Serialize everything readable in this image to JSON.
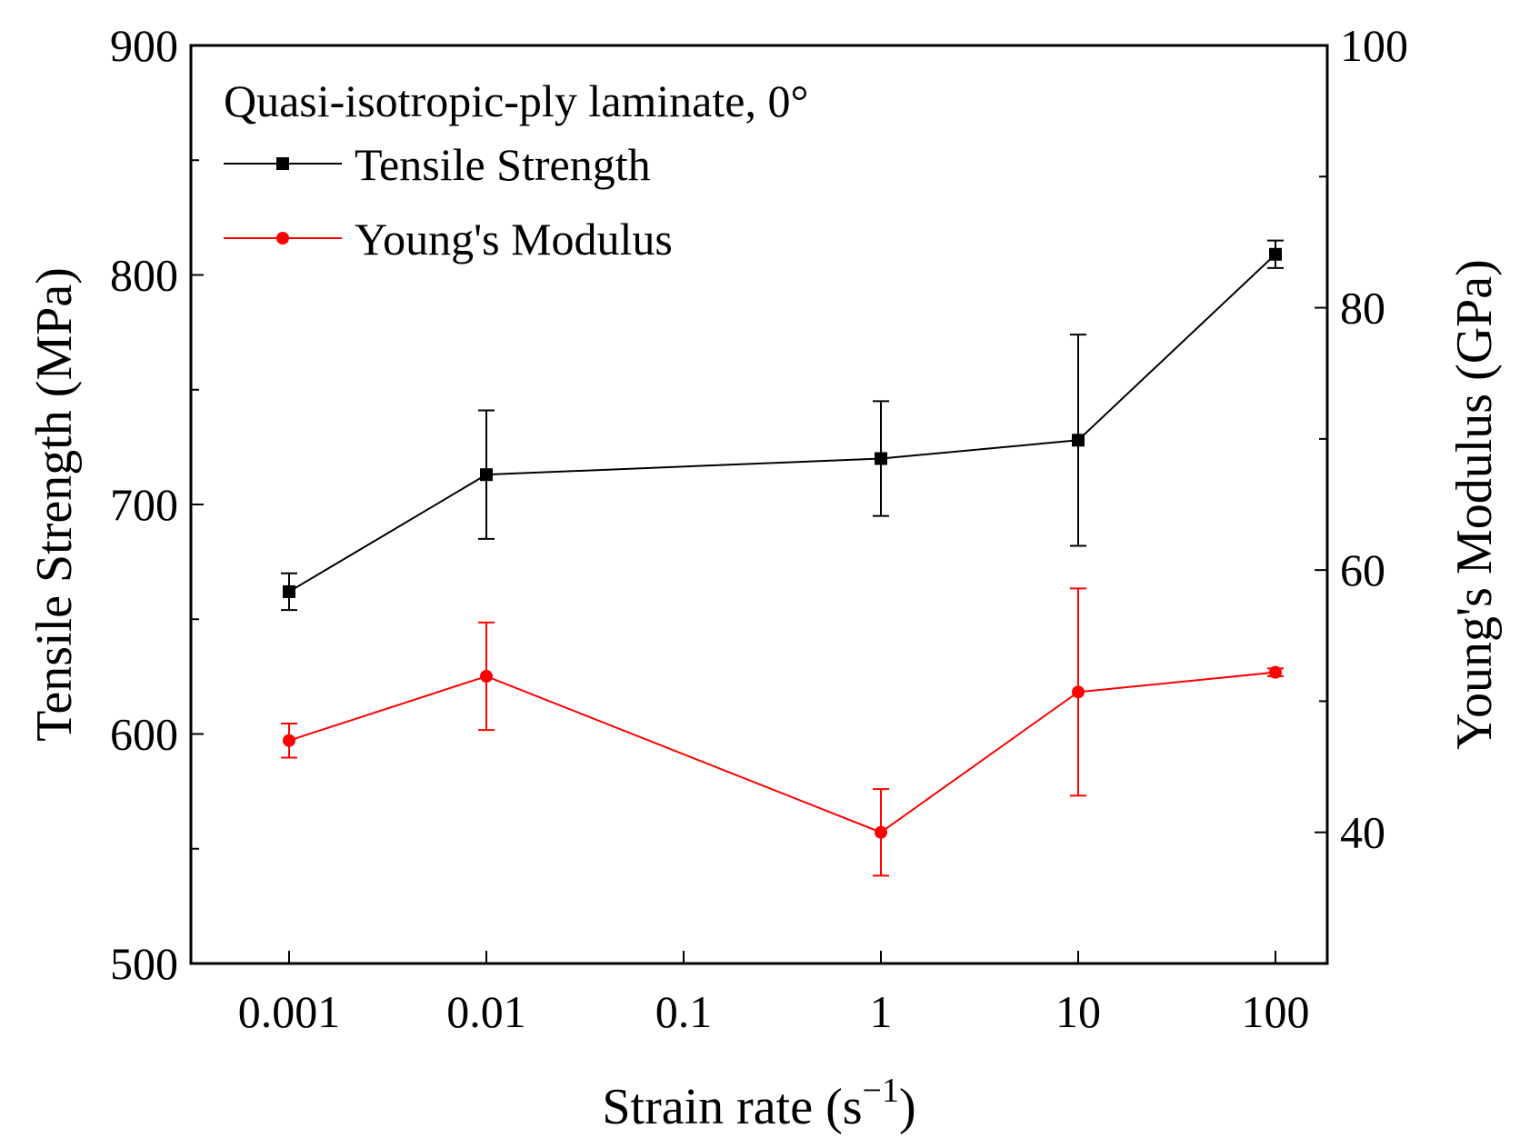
{
  "chart_data": {
    "type": "line",
    "annotation": "Quasi-isotropic-ply laminate, 0°",
    "x_categories": [
      "0.001",
      "0.01",
      "0.1",
      "1",
      "10",
      "100"
    ],
    "x_scale": "log",
    "xlabel": "Strain rate (s",
    "xlabel_sup": "−1",
    "xlabel_tail": ")",
    "ylabel_left": "Tensile Strength (MPa)",
    "ylabel_right": "Young's Modulus (GPa)",
    "ylim_left": [
      500,
      900
    ],
    "yticks_left": [
      "500",
      "600",
      "700",
      "800",
      "900"
    ],
    "ylim_right": [
      30,
      100
    ],
    "yticks_right": [
      "40",
      "60",
      "80",
      "100"
    ],
    "legend_position": "top-left",
    "series": [
      {
        "name": "Tensile Strength",
        "axis": "left",
        "color": "#000000",
        "marker": "square",
        "x": [
          0.001,
          0.01,
          1,
          10,
          100
        ],
        "y": [
          662,
          713,
          720,
          728,
          809
        ],
        "err": [
          8,
          28,
          25,
          46,
          6
        ]
      },
      {
        "name": "Young's Modulus",
        "axis": "right",
        "color": "#ff0000",
        "marker": "circle",
        "x": [
          0.001,
          0.01,
          1,
          10,
          100
        ],
        "y": [
          47.0,
          51.9,
          40.0,
          50.7,
          52.2
        ],
        "err": [
          1.3,
          4.1,
          3.3,
          7.9,
          0.3
        ]
      }
    ]
  }
}
